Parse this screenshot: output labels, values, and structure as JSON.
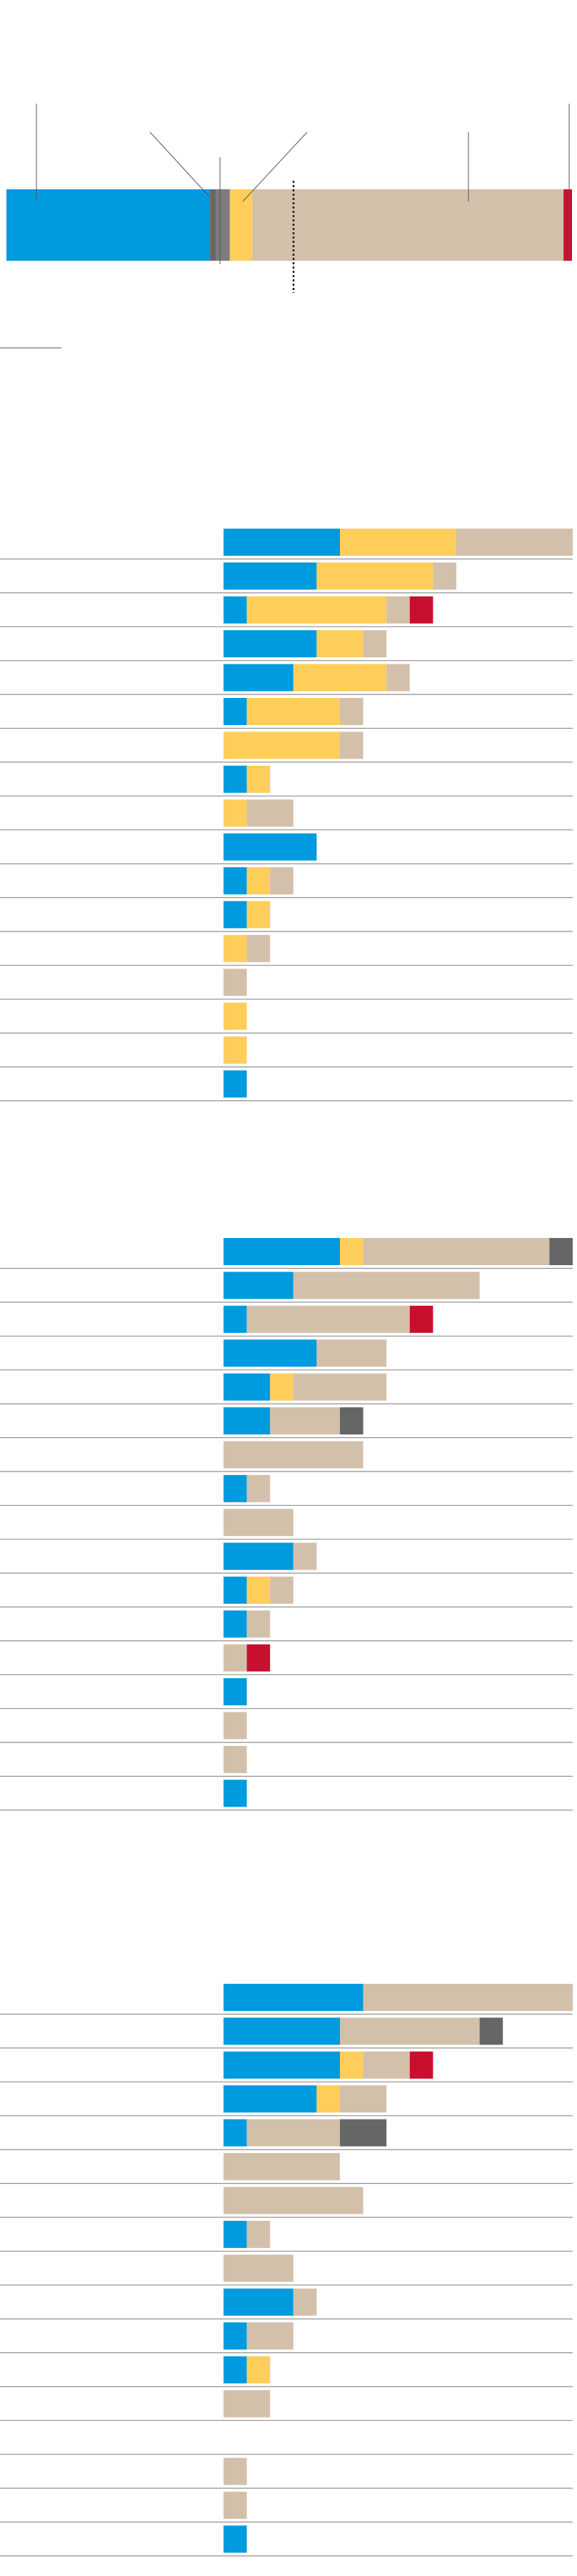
{
  "colors": {
    "blue": "#009ADE",
    "yellow": "#FFCD5A",
    "tan": "#D3C0AB",
    "red": "#C8102E",
    "dark_gray": "#666666",
    "gray": "#7C7C7C",
    "rule": "#8F8F8F",
    "leader": "#555555"
  },
  "chart_data": [
    {
      "type": "bar",
      "orientation": "horizontal-stacked",
      "segments": [
        {
          "color": "blue",
          "value": 36.0
        },
        {
          "color": "dark_gray",
          "value": 1.0
        },
        {
          "color": "gray",
          "value": 2.5
        },
        {
          "color": "yellow",
          "value": 4.0
        },
        {
          "color": "tan",
          "value": 55.0
        },
        {
          "color": "red",
          "value": 1.5
        }
      ]
    },
    {
      "type": "bar",
      "orientation": "horizontal-stacked",
      "unit_step": 1,
      "rows": [
        {
          "segments": [
            {
              "color": "blue",
              "value": 5
            },
            {
              "color": "yellow",
              "value": 5
            },
            {
              "color": "tan",
              "value": 5
            }
          ]
        },
        {
          "segments": [
            {
              "color": "blue",
              "value": 4
            },
            {
              "color": "yellow",
              "value": 5
            },
            {
              "color": "tan",
              "value": 1
            }
          ]
        },
        {
          "segments": [
            {
              "color": "blue",
              "value": 1
            },
            {
              "color": "yellow",
              "value": 6
            },
            {
              "color": "tan",
              "value": 1
            },
            {
              "color": "red",
              "value": 1
            }
          ]
        },
        {
          "segments": [
            {
              "color": "blue",
              "value": 4
            },
            {
              "color": "yellow",
              "value": 2
            },
            {
              "color": "tan",
              "value": 1
            }
          ]
        },
        {
          "segments": [
            {
              "color": "blue",
              "value": 3
            },
            {
              "color": "yellow",
              "value": 4
            },
            {
              "color": "tan",
              "value": 1
            }
          ]
        },
        {
          "segments": [
            {
              "color": "blue",
              "value": 1
            },
            {
              "color": "yellow",
              "value": 4
            },
            {
              "color": "tan",
              "value": 1
            }
          ]
        },
        {
          "segments": [
            {
              "color": "yellow",
              "value": 5
            },
            {
              "color": "tan",
              "value": 1
            }
          ]
        },
        {
          "segments": [
            {
              "color": "blue",
              "value": 1
            },
            {
              "color": "yellow",
              "value": 1
            }
          ]
        },
        {
          "segments": [
            {
              "color": "yellow",
              "value": 1
            },
            {
              "color": "tan",
              "value": 2
            }
          ]
        },
        {
          "segments": [
            {
              "color": "blue",
              "value": 4
            }
          ]
        },
        {
          "segments": [
            {
              "color": "blue",
              "value": 1
            },
            {
              "color": "yellow",
              "value": 1
            },
            {
              "color": "tan",
              "value": 1
            }
          ]
        },
        {
          "segments": [
            {
              "color": "blue",
              "value": 1
            },
            {
              "color": "yellow",
              "value": 1
            }
          ]
        },
        {
          "segments": [
            {
              "color": "yellow",
              "value": 1
            },
            {
              "color": "tan",
              "value": 1
            }
          ]
        },
        {
          "segments": [
            {
              "color": "tan",
              "value": 1
            }
          ]
        },
        {
          "segments": [
            {
              "color": "yellow",
              "value": 1
            }
          ]
        },
        {
          "segments": [
            {
              "color": "yellow",
              "value": 1
            }
          ]
        },
        {
          "segments": [
            {
              "color": "blue",
              "value": 1
            }
          ]
        }
      ]
    },
    {
      "type": "bar",
      "orientation": "horizontal-stacked",
      "unit_step": 1,
      "rows": [
        {
          "segments": [
            {
              "color": "blue",
              "value": 5
            },
            {
              "color": "yellow",
              "value": 1
            },
            {
              "color": "tan",
              "value": 8
            },
            {
              "color": "dark_gray",
              "value": 1
            }
          ]
        },
        {
          "segments": [
            {
              "color": "blue",
              "value": 3
            },
            {
              "color": "tan",
              "value": 8
            }
          ]
        },
        {
          "segments": [
            {
              "color": "blue",
              "value": 1
            },
            {
              "color": "tan",
              "value": 7
            },
            {
              "color": "red",
              "value": 1
            }
          ]
        },
        {
          "segments": [
            {
              "color": "blue",
              "value": 4
            },
            {
              "color": "tan",
              "value": 3
            }
          ]
        },
        {
          "segments": [
            {
              "color": "blue",
              "value": 2
            },
            {
              "color": "yellow",
              "value": 1
            },
            {
              "color": "tan",
              "value": 4
            }
          ]
        },
        {
          "segments": [
            {
              "color": "blue",
              "value": 2
            },
            {
              "color": "tan",
              "value": 3
            },
            {
              "color": "dark_gray",
              "value": 1
            }
          ]
        },
        {
          "segments": [
            {
              "color": "tan",
              "value": 6
            }
          ]
        },
        {
          "segments": [
            {
              "color": "blue",
              "value": 1
            },
            {
              "color": "tan",
              "value": 1
            }
          ]
        },
        {
          "segments": [
            {
              "color": "tan",
              "value": 3
            }
          ]
        },
        {
          "segments": [
            {
              "color": "blue",
              "value": 3
            },
            {
              "color": "tan",
              "value": 1
            }
          ]
        },
        {
          "segments": [
            {
              "color": "blue",
              "value": 1
            },
            {
              "color": "yellow",
              "value": 1
            },
            {
              "color": "tan",
              "value": 1
            }
          ]
        },
        {
          "segments": [
            {
              "color": "blue",
              "value": 1
            },
            {
              "color": "tan",
              "value": 1
            }
          ]
        },
        {
          "segments": [
            {
              "color": "tan",
              "value": 1
            },
            {
              "color": "red",
              "value": 1
            }
          ]
        },
        {
          "segments": [
            {
              "color": "blue",
              "value": 1
            }
          ]
        },
        {
          "segments": [
            {
              "color": "tan",
              "value": 1
            }
          ]
        },
        {
          "segments": [
            {
              "color": "tan",
              "value": 1
            }
          ]
        },
        {
          "segments": [
            {
              "color": "blue",
              "value": 1
            }
          ]
        }
      ]
    },
    {
      "type": "bar",
      "orientation": "horizontal-stacked",
      "unit_step": 1,
      "rows": [
        {
          "segments": [
            {
              "color": "blue",
              "value": 6
            },
            {
              "color": "tan",
              "value": 9
            }
          ]
        },
        {
          "segments": [
            {
              "color": "blue",
              "value": 5
            },
            {
              "color": "tan",
              "value": 6
            },
            {
              "color": "dark_gray",
              "value": 1
            }
          ]
        },
        {
          "segments": [
            {
              "color": "blue",
              "value": 5
            },
            {
              "color": "yellow",
              "value": 1
            },
            {
              "color": "tan",
              "value": 2
            },
            {
              "color": "red",
              "value": 1
            }
          ]
        },
        {
          "segments": [
            {
              "color": "blue",
              "value": 4
            },
            {
              "color": "yellow",
              "value": 1
            },
            {
              "color": "tan",
              "value": 2
            }
          ]
        },
        {
          "segments": [
            {
              "color": "blue",
              "value": 1
            },
            {
              "color": "tan",
              "value": 4
            },
            {
              "color": "dark_gray",
              "value": 2
            }
          ]
        },
        {
          "segments": [
            {
              "color": "tan",
              "value": 5
            }
          ]
        },
        {
          "segments": [
            {
              "color": "tan",
              "value": 6
            }
          ]
        },
        {
          "segments": [
            {
              "color": "blue",
              "value": 1
            },
            {
              "color": "tan",
              "value": 1
            }
          ]
        },
        {
          "segments": [
            {
              "color": "tan",
              "value": 3
            }
          ]
        },
        {
          "segments": [
            {
              "color": "blue",
              "value": 3
            },
            {
              "color": "tan",
              "value": 1
            }
          ]
        },
        {
          "segments": [
            {
              "color": "blue",
              "value": 1
            },
            {
              "color": "tan",
              "value": 2
            }
          ]
        },
        {
          "segments": [
            {
              "color": "blue",
              "value": 1
            },
            {
              "color": "yellow",
              "value": 1
            }
          ]
        },
        {
          "segments": [
            {
              "color": "tan",
              "value": 2
            }
          ]
        },
        {
          "segments": []
        },
        {
          "segments": [
            {
              "color": "tan",
              "value": 1
            }
          ]
        },
        {
          "segments": [
            {
              "color": "tan",
              "value": 1
            }
          ]
        },
        {
          "segments": [
            {
              "color": "blue",
              "value": 1
            }
          ]
        }
      ]
    }
  ]
}
